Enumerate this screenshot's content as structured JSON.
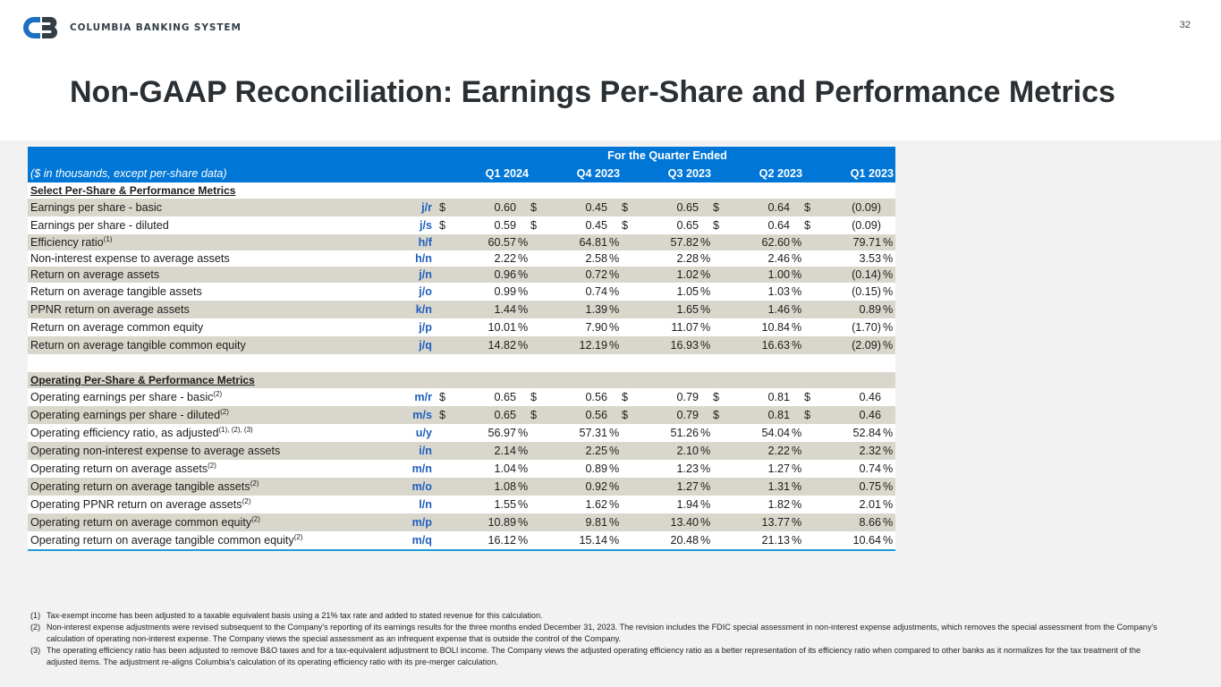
{
  "header": {
    "logo_text": "COLUMBIA BANKING SYSTEM",
    "page_number": "32",
    "title": "Non-GAAP Reconciliation: Earnings Per-Share and Performance Metrics"
  },
  "table": {
    "group_header": "For the Quarter Ended",
    "unit_label": "($ in thousands, except per-share data)",
    "periods": [
      "Q1 2024",
      "Q4 2023",
      "Q3 2023",
      "Q2 2023",
      "Q1 2023"
    ],
    "section1_title": "Select Per-Share & Performance Metrics",
    "section1_rows": [
      {
        "label": "Earnings per share - basic",
        "sup": "",
        "code": "j/r",
        "values": [
          "0.60",
          "0.45",
          "0.65",
          "0.64",
          "(0.09)"
        ]
      },
      {
        "label": "Earnings per share - diluted",
        "sup": "",
        "code": "j/s",
        "values": [
          "0.59",
          "0.45",
          "0.65",
          "0.64",
          "(0.09)"
        ]
      },
      {
        "label": "Efficiency ratio",
        "sup": "(1)",
        "code": "h/f",
        "values": [
          "60.57",
          "64.81",
          "57.82",
          "62.60",
          "79.71"
        ]
      },
      {
        "label": "Non-interest expense to average assets",
        "sup": "",
        "code": "h/n",
        "values": [
          "2.22",
          "2.58",
          "2.28",
          "2.46",
          "3.53"
        ]
      },
      {
        "label": "Return on average assets",
        "sup": "",
        "code": "j/n",
        "values": [
          "0.96",
          "0.72",
          "1.02",
          "1.00",
          "(0.14)"
        ]
      },
      {
        "label": "Return on average tangible assets",
        "sup": "",
        "code": "j/o",
        "values": [
          "0.99",
          "0.74",
          "1.05",
          "1.03",
          "(0.15)"
        ]
      },
      {
        "label": "PPNR return on average assets",
        "sup": "",
        "code": "k/n",
        "values": [
          "1.44",
          "1.39",
          "1.65",
          "1.46",
          "0.89"
        ]
      },
      {
        "label": "Return on average common equity",
        "sup": "",
        "code": "j/p",
        "values": [
          "10.01",
          "7.90",
          "11.07",
          "10.84",
          "(1.70)"
        ]
      },
      {
        "label": "Return on average tangible common equity",
        "sup": "",
        "code": "j/q",
        "values": [
          "14.82",
          "12.19",
          "16.93",
          "16.63",
          "(2.09)"
        ]
      }
    ],
    "section2_title": "Operating Per-Share & Performance Metrics",
    "section2_rows": [
      {
        "label": "Operating earnings per share - basic",
        "sup": "(2)",
        "code": "m/r",
        "values": [
          "0.65",
          "0.56",
          "0.79",
          "0.81",
          "0.46"
        ]
      },
      {
        "label": "Operating earnings per share - diluted",
        "sup": "(2)",
        "code": "m/s",
        "values": [
          "0.65",
          "0.56",
          "0.79",
          "0.81",
          "0.46"
        ]
      },
      {
        "label": "Operating efficiency ratio, as adjusted",
        "sup": "(1), (2), (3)",
        "code": "u/y",
        "values": [
          "56.97",
          "57.31",
          "51.26",
          "54.04",
          "52.84"
        ]
      },
      {
        "label": "Operating non-interest expense to average assets",
        "sup": "",
        "code": "i/n",
        "values": [
          "2.14",
          "2.25",
          "2.10",
          "2.22",
          "2.32"
        ]
      },
      {
        "label": "Operating return on average assets",
        "sup": "(2)",
        "code": "m/n",
        "values": [
          "1.04",
          "0.89",
          "1.23",
          "1.27",
          "0.74"
        ]
      },
      {
        "label": "Operating return on average tangible assets",
        "sup": "(2)",
        "code": "m/o",
        "values": [
          "1.08",
          "0.92",
          "1.27",
          "1.31",
          "0.75"
        ]
      },
      {
        "label": "Operating PPNR return on average assets",
        "sup": "(2)",
        "code": "l/n",
        "values": [
          "1.55",
          "1.62",
          "1.94",
          "1.82",
          "2.01"
        ]
      },
      {
        "label": "Operating return on average common equity",
        "sup": "(2)",
        "code": "m/p",
        "values": [
          "10.89",
          "9.81",
          "13.40",
          "13.77",
          "8.66"
        ]
      },
      {
        "label": "Operating return on average tangible common equity",
        "sup": "(2)",
        "code": "m/q",
        "values": [
          "16.12",
          "15.14",
          "20.48",
          "21.13",
          "10.64"
        ]
      }
    ],
    "currency_symbol": "$",
    "percent_symbol": "%"
  },
  "footnotes": [
    {
      "num": "(1)",
      "text": "Tax-exempt income has been adjusted to a taxable equivalent basis using a 21% tax rate and added to stated revenue for this calculation."
    },
    {
      "num": "(2)",
      "text": "Non-interest expense adjustments were revised subsequent to the Company's reporting of its earnings results for the three months ended December 31, 2023. The revision includes the FDIC special assessment in non-interest expense adjustments, which removes the special assessment from the Company's calculation of operating non-interest expense. The Company views the special assessment as an infrequent expense that is outside the control of the Company."
    },
    {
      "num": "(3)",
      "text": "The operating efficiency ratio has been adjusted to remove B&O taxes and for a tax-equivalent adjustment to BOLI income. The Company views the adjusted operating efficiency ratio as a better representation of its efficiency ratio when compared to other banks as it normalizes for the tax treatment of the adjusted items. The adjustment re-aligns Columbia's calculation of its operating efficiency ratio with its pre-merger calculation."
    }
  ],
  "colors": {
    "accent": "#0076d6",
    "shade": "#d9d7cc",
    "code": "#1f5fbf",
    "rule": "#1d9bd6"
  }
}
